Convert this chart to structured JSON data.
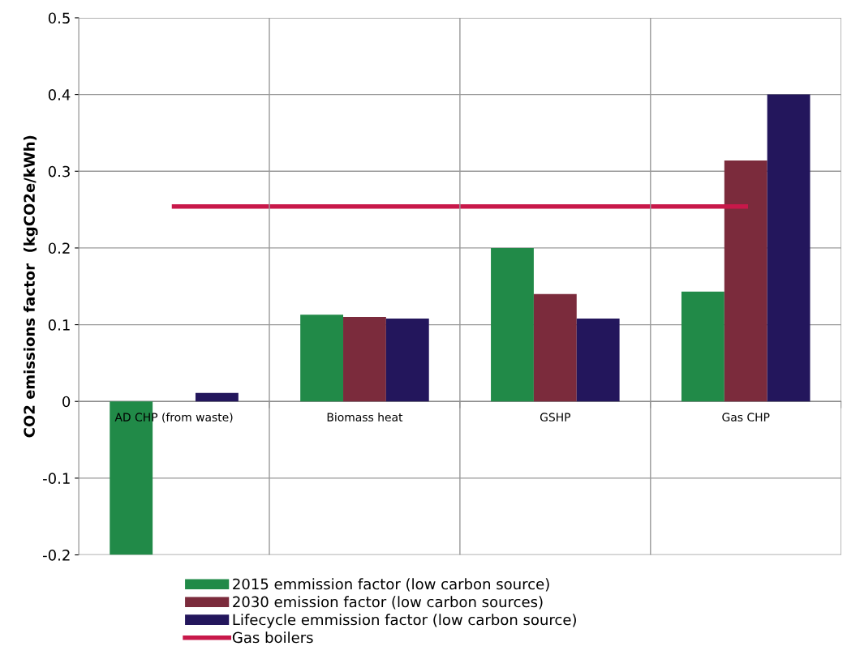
{
  "chart_data": {
    "type": "bar",
    "ylabel": "CO2 emissions factor  (kgCO2e/kWh)",
    "categories": [
      "AD CHP (from waste)",
      "Biomass heat",
      "GSHP",
      "Gas CHP"
    ],
    "series": [
      {
        "name": "2015 emmission factor (low carbon source)",
        "color": "#218a48",
        "values": [
          -0.2,
          0.113,
          0.2,
          0.143
        ]
      },
      {
        "name": "2030 emission factor (low carbon sources)",
        "color": "#7b2b3c",
        "values": [
          0,
          0.11,
          0.14,
          0.314
        ]
      },
      {
        "name": "Lifecycle emmission factor (low carbon source)",
        "color": "#23165c",
        "values": [
          0.011,
          0.108,
          0.108,
          0.4
        ]
      },
      {
        "name": "Gas boilers",
        "color": "#c8184a",
        "type": "line",
        "values": [
          0.254,
          0.254,
          0.254,
          0.254
        ]
      }
    ],
    "ylim": [
      -0.2,
      0.5
    ],
    "yticks": [
      -0.2,
      -0.1,
      0,
      0.1,
      0.2,
      0.3,
      0.4,
      0.5
    ],
    "grid": true,
    "legend": "bottom",
    "marker": "none",
    "line_style": "solid"
  }
}
